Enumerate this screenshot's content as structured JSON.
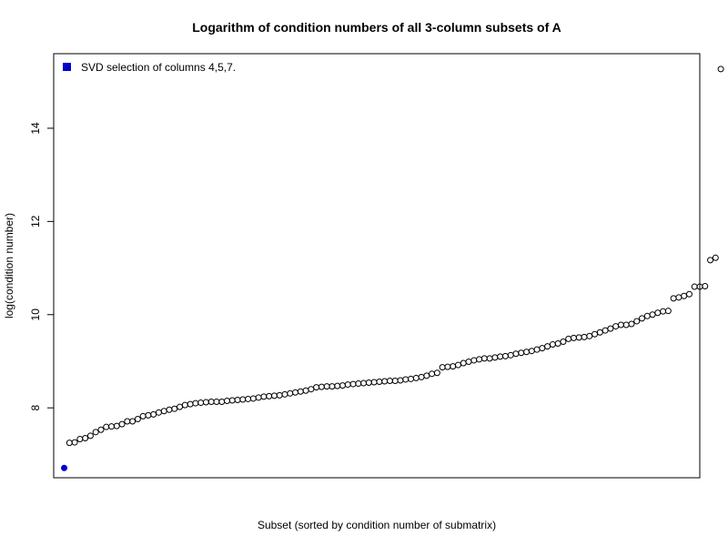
{
  "chart_data": {
    "type": "scatter",
    "title": "Logarithm of condition numbers of all 3-column subsets of A",
    "xlabel": "Subset (sorted by condition number of submatrix)",
    "ylabel": "log(condition number)",
    "ylim": [
      6.5,
      15.6
    ],
    "xlim": [
      -2,
      121
    ],
    "yticks": [
      8,
      10,
      12,
      14
    ],
    "grid": false,
    "legend": {
      "position": "top-left",
      "entries": [
        {
          "label": "SVD selection of columns 4,5,7.",
          "color": "#0000cd"
        }
      ]
    },
    "highlight": {
      "x": 0,
      "y": 6.71,
      "color": "#0000cd"
    },
    "series": [
      {
        "values": [
          6.71,
          7.25,
          7.26,
          7.33,
          7.35,
          7.4,
          7.48,
          7.53,
          7.59,
          7.6,
          7.61,
          7.65,
          7.71,
          7.71,
          7.76,
          7.82,
          7.84,
          7.86,
          7.9,
          7.93,
          7.96,
          7.98,
          8.02,
          8.06,
          8.08,
          8.1,
          8.11,
          8.12,
          8.13,
          8.13,
          8.13,
          8.15,
          8.16,
          8.17,
          8.18,
          8.19,
          8.2,
          8.22,
          8.24,
          8.25,
          8.26,
          8.27,
          8.29,
          8.31,
          8.33,
          8.35,
          8.37,
          8.4,
          8.44,
          8.45,
          8.46,
          8.46,
          8.47,
          8.48,
          8.5,
          8.51,
          8.52,
          8.53,
          8.54,
          8.55,
          8.56,
          8.57,
          8.58,
          8.58,
          8.59,
          8.61,
          8.62,
          8.64,
          8.66,
          8.69,
          8.73,
          8.75,
          8.87,
          8.88,
          8.89,
          8.92,
          8.96,
          8.99,
          9.02,
          9.04,
          9.06,
          9.06,
          9.08,
          9.1,
          9.11,
          9.13,
          9.16,
          9.18,
          9.2,
          9.22,
          9.25,
          9.28,
          9.32,
          9.36,
          9.38,
          9.42,
          9.48,
          9.5,
          9.51,
          9.52,
          9.54,
          9.58,
          9.62,
          9.66,
          9.7,
          9.75,
          9.78,
          9.78,
          9.8,
          9.86,
          9.92,
          9.97,
          10.0,
          10.04,
          10.07,
          10.08,
          10.35,
          10.37,
          10.4,
          10.44,
          10.6,
          10.6,
          10.61,
          11.17,
          11.22,
          15.27
        ]
      }
    ]
  }
}
